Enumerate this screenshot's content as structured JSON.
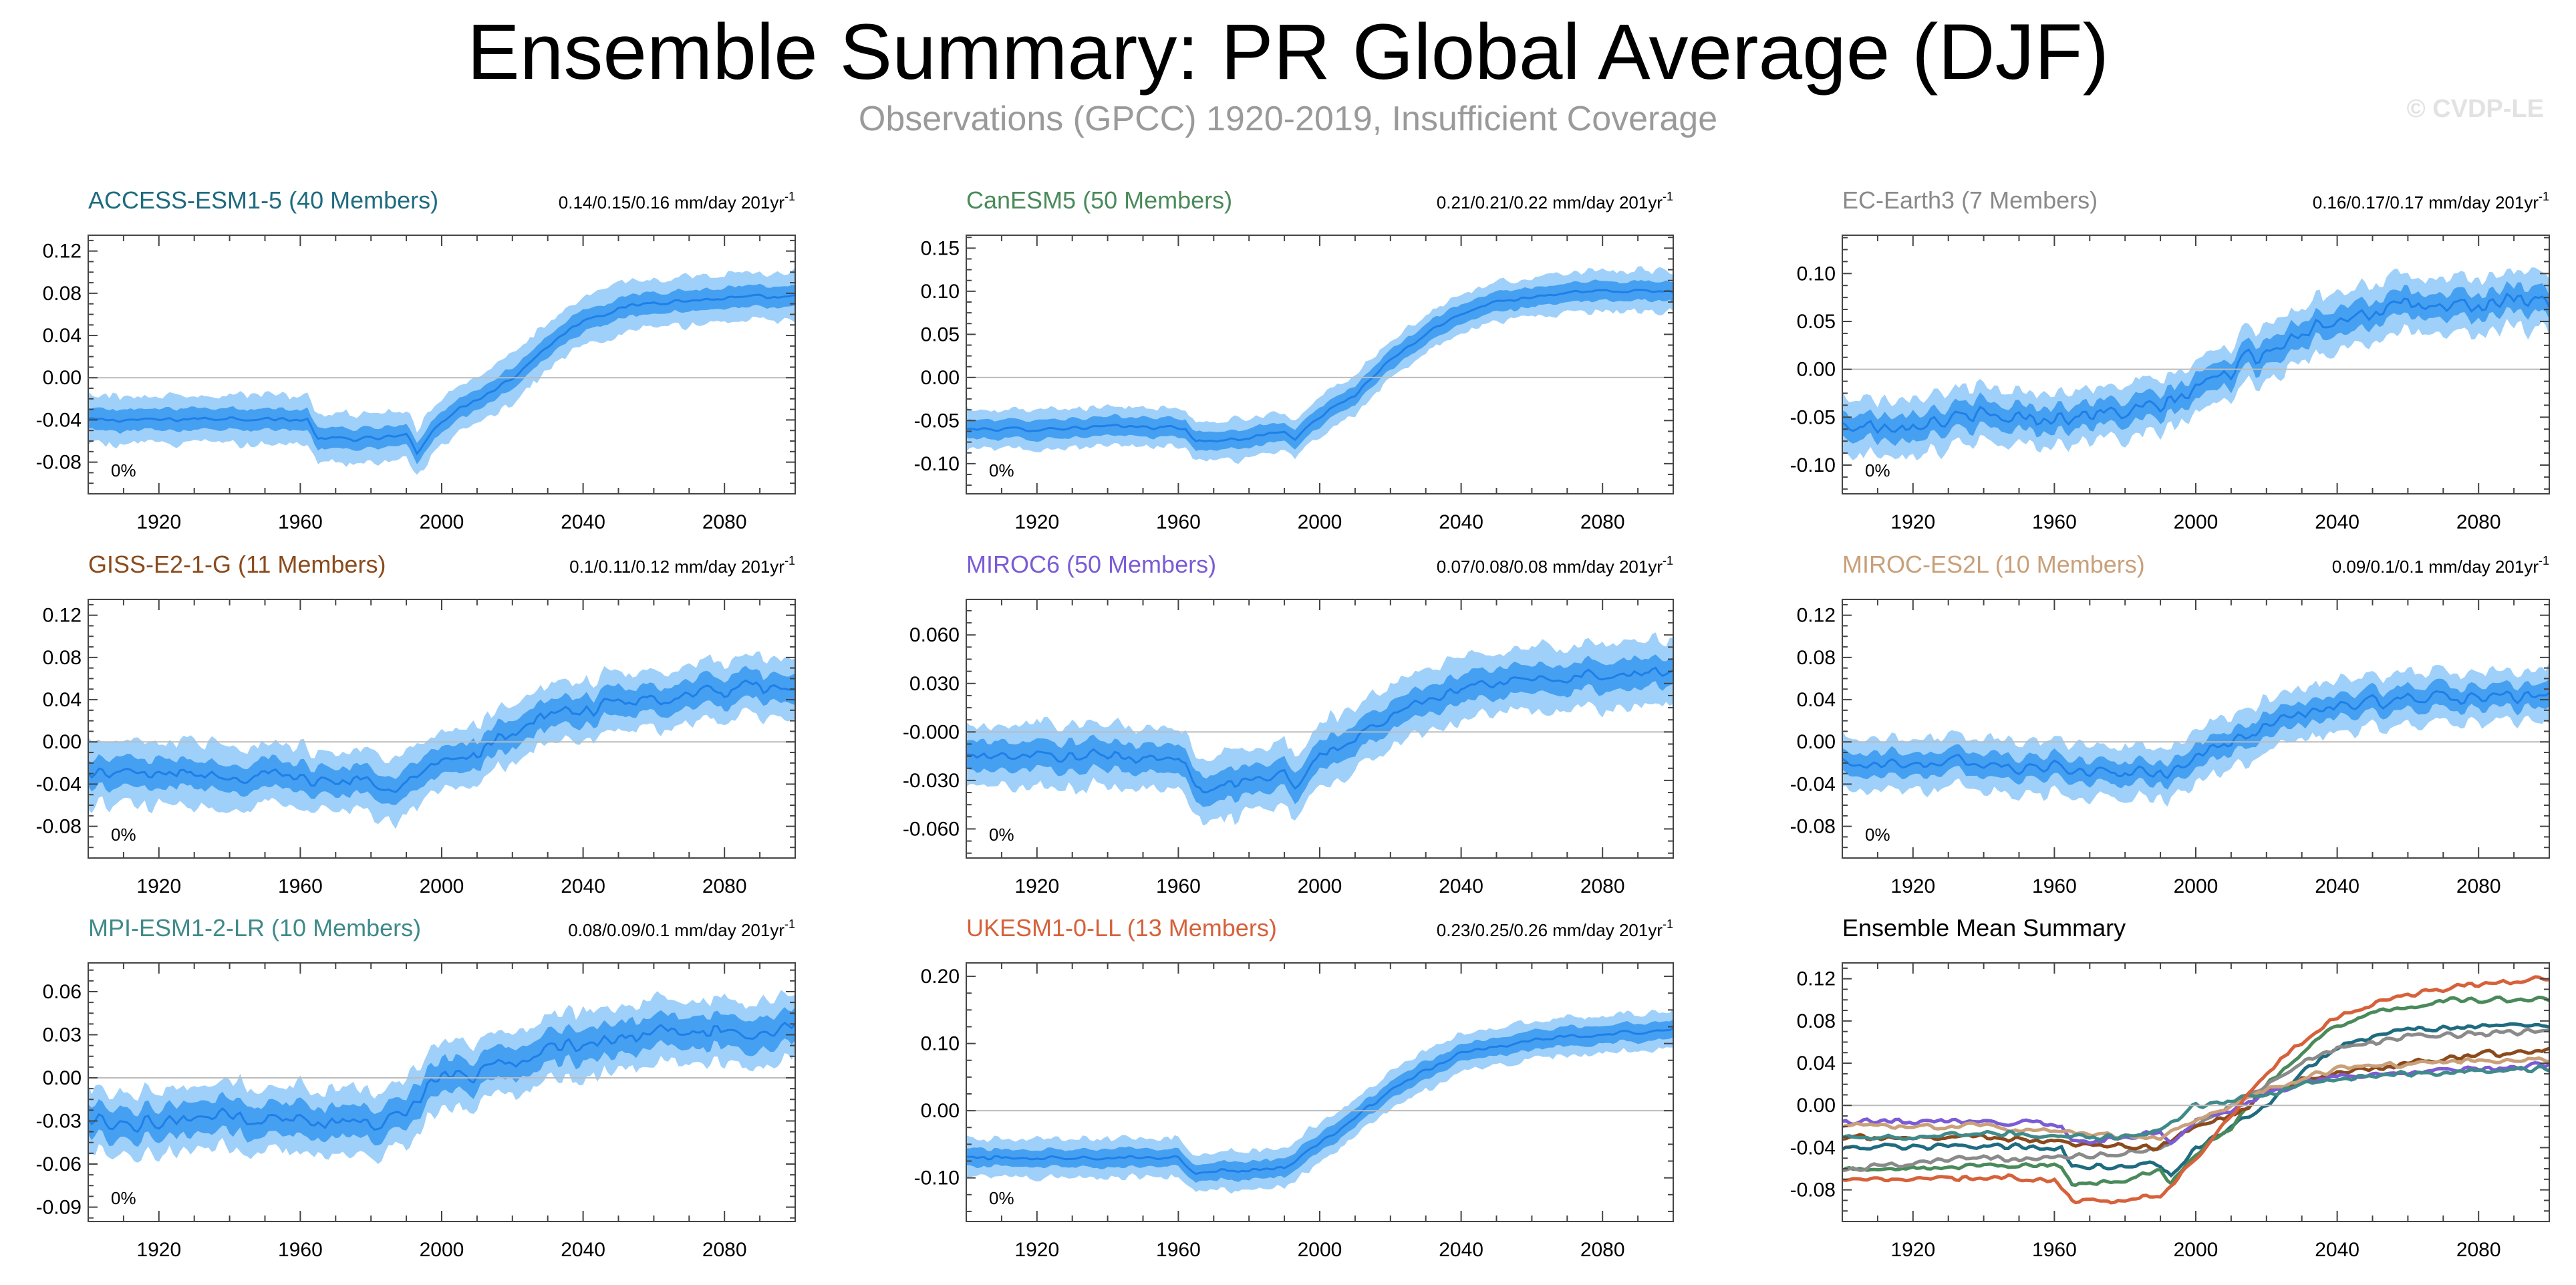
{
  "page": {
    "title": "Ensemble Summary: PR Global Average (DJF)",
    "subtitle": "Observations (GPCC) 1920-2019, Insufficient Coverage",
    "copyright": "© CVDP-LE"
  },
  "chart_data": [
    {
      "type": "area",
      "title": "ACCESS-ESM1-5 (40 Members)",
      "title_color": "#1f6b80",
      "trend_label": "0.14/0.15/0.16 mm/day 201yr",
      "trend_superscript": "-1",
      "corner_label": "0%",
      "xlim": [
        1900,
        2100
      ],
      "ylim": [
        -0.11,
        0.135
      ],
      "xticks": [
        1920,
        1960,
        2000,
        2040,
        2080
      ],
      "yticks": [
        0.12,
        0.08,
        0.04,
        0.0,
        -0.04,
        -0.08
      ],
      "ytick_labels": [
        "0.12",
        "0.08",
        "0.04",
        "0.00",
        "-0.04",
        "-0.08"
      ],
      "mean_x": [
        1900,
        1920,
        1940,
        1960,
        1962,
        1965,
        1980,
        1990,
        1993,
        2000,
        2010,
        2020,
        2030,
        2040,
        2050,
        2060,
        2070,
        2080,
        2090,
        2100
      ],
      "mean_y": [
        -0.04,
        -0.04,
        -0.038,
        -0.04,
        -0.04,
        -0.058,
        -0.058,
        -0.055,
        -0.07,
        -0.04,
        -0.02,
        0.0,
        0.03,
        0.055,
        0.065,
        0.072,
        0.073,
        0.075,
        0.076,
        0.076
      ],
      "band_inner": 0.009,
      "band_outer": 0.02,
      "noise": 0.003
    },
    {
      "type": "area",
      "title": "CanESM5 (50 Members)",
      "title_color": "#4a8a5a",
      "trend_label": "0.21/0.21/0.22 mm/day 201yr",
      "trend_superscript": "-1",
      "corner_label": "0%",
      "xlim": [
        1900,
        2100
      ],
      "ylim": [
        -0.135,
        0.165
      ],
      "xticks": [
        1920,
        1960,
        2000,
        2040,
        2080
      ],
      "yticks": [
        0.15,
        0.1,
        0.05,
        0.0,
        -0.05,
        -0.1
      ],
      "ytick_labels": [
        "0.15",
        "0.10",
        "0.05",
        "0.00",
        "-0.05",
        "-0.10"
      ],
      "mean_x": [
        1900,
        1920,
        1940,
        1960,
        1962,
        1965,
        1980,
        1990,
        1993,
        2000,
        2010,
        2020,
        2030,
        2040,
        2050,
        2060,
        2070,
        2080,
        2090,
        2100
      ],
      "mean_y": [
        -0.06,
        -0.06,
        -0.057,
        -0.058,
        -0.06,
        -0.075,
        -0.07,
        -0.062,
        -0.072,
        -0.045,
        -0.02,
        0.02,
        0.05,
        0.075,
        0.088,
        0.094,
        0.098,
        0.1,
        0.1,
        0.1
      ],
      "band_inner": 0.01,
      "band_outer": 0.02,
      "noise": 0.003
    },
    {
      "type": "area",
      "title": "EC-Earth3 (7 Members)",
      "title_color": "#8a8a8a",
      "trend_label": "0.16/0.17/0.17 mm/day 201yr",
      "trend_superscript": "-1",
      "corner_label": "0%",
      "xlim": [
        1900,
        2100
      ],
      "ylim": [
        -0.13,
        0.14
      ],
      "xticks": [
        1920,
        1960,
        2000,
        2040,
        2080
      ],
      "yticks": [
        0.1,
        0.05,
        0.0,
        -0.05,
        -0.1
      ],
      "ytick_labels": [
        "0.10",
        "0.05",
        "0.00",
        "-0.05",
        "-0.10"
      ],
      "mean_x": [
        1900,
        1920,
        1940,
        1960,
        1980,
        1990,
        2000,
        2010,
        2020,
        2030,
        2040,
        2060,
        2080,
        2100
      ],
      "mean_y": [
        -0.06,
        -0.055,
        -0.05,
        -0.05,
        -0.045,
        -0.04,
        -0.02,
        0.0,
        0.02,
        0.04,
        0.055,
        0.065,
        0.068,
        0.07
      ],
      "band_inner": 0.012,
      "band_outer": 0.025,
      "noise": 0.013
    },
    {
      "type": "area",
      "title": "GISS-E2-1-G (11 Members)",
      "title_color": "#8b4a1c",
      "trend_label": "0.1/0.11/0.12 mm/day 201yr",
      "trend_superscript": "-1",
      "corner_label": "0%",
      "xlim": [
        1900,
        2100
      ],
      "ylim": [
        -0.11,
        0.135
      ],
      "xticks": [
        1920,
        1960,
        2000,
        2040,
        2080
      ],
      "yticks": [
        0.12,
        0.08,
        0.04,
        0.0,
        -0.04,
        -0.08
      ],
      "ytick_labels": [
        "0.12",
        "0.08",
        "0.04",
        "0.00",
        "-0.04",
        "-0.08"
      ],
      "mean_x": [
        1900,
        1920,
        1940,
        1960,
        1980,
        1990,
        1992,
        2000,
        2010,
        2020,
        2030,
        2040,
        2060,
        2080,
        2100
      ],
      "mean_y": [
        -0.03,
        -0.03,
        -0.03,
        -0.035,
        -0.038,
        -0.04,
        -0.035,
        -0.02,
        -0.01,
        0.01,
        0.025,
        0.03,
        0.04,
        0.048,
        0.052
      ],
      "band_inner": 0.012,
      "band_outer": 0.025,
      "noise": 0.01
    },
    {
      "type": "area",
      "title": "MIROC6 (50 Members)",
      "title_color": "#7b5bd6",
      "trend_label": "0.07/0.08/0.08 mm/day 201yr",
      "trend_superscript": "-1",
      "corner_label": "0%",
      "xlim": [
        1900,
        2100
      ],
      "ylim": [
        -0.078,
        0.082
      ],
      "xticks": [
        1920,
        1960,
        2000,
        2040,
        2080
      ],
      "yticks": [
        0.06,
        0.03,
        0.0,
        -0.03,
        -0.06
      ],
      "ytick_labels": [
        "0.060",
        "0.030",
        "-0.000",
        "-0.030",
        "-0.060"
      ],
      "mean_x": [
        1900,
        1920,
        1940,
        1960,
        1962,
        1965,
        1980,
        1990,
        1993,
        2000,
        2010,
        2020,
        2030,
        2040,
        2060,
        2080,
        2100
      ],
      "mean_y": [
        -0.015,
        -0.015,
        -0.015,
        -0.017,
        -0.02,
        -0.035,
        -0.03,
        -0.025,
        -0.035,
        -0.015,
        -0.005,
        0.01,
        0.02,
        0.028,
        0.032,
        0.035,
        0.038
      ],
      "band_inner": 0.008,
      "band_outer": 0.017,
      "noise": 0.005
    },
    {
      "type": "area",
      "title": "MIROC-ES2L (10 Members)",
      "title_color": "#c9a07a",
      "trend_label": "0.09/0.1/0.1 mm/day 201yr",
      "trend_superscript": "-1",
      "corner_label": "0%",
      "xlim": [
        1900,
        2100
      ],
      "ylim": [
        -0.11,
        0.135
      ],
      "xticks": [
        1920,
        1960,
        2000,
        2040,
        2080
      ],
      "yticks": [
        0.12,
        0.08,
        0.04,
        0.0,
        -0.04,
        -0.08
      ],
      "ytick_labels": [
        "0.12",
        "0.08",
        "0.04",
        "0.00",
        "-0.04",
        "-0.08"
      ],
      "mean_x": [
        1900,
        1920,
        1940,
        1960,
        1980,
        1990,
        2000,
        2010,
        2020,
        2030,
        2040,
        2060,
        2080,
        2100
      ],
      "mean_y": [
        -0.02,
        -0.02,
        -0.02,
        -0.025,
        -0.03,
        -0.03,
        -0.015,
        0.0,
        0.015,
        0.025,
        0.035,
        0.04,
        0.042,
        0.045
      ],
      "band_inner": 0.01,
      "band_outer": 0.022,
      "noise": 0.009
    },
    {
      "type": "area",
      "title": "MPI-ESM1-2-LR (10 Members)",
      "title_color": "#3f8a8a",
      "trend_label": "0.08/0.09/0.1 mm/day 201yr",
      "trend_superscript": "-1",
      "corner_label": "0%",
      "xlim": [
        1900,
        2100
      ],
      "ylim": [
        -0.1,
        0.08
      ],
      "xticks": [
        1920,
        1960,
        2000,
        2040,
        2080
      ],
      "yticks": [
        0.06,
        0.03,
        0.0,
        -0.03,
        -0.06,
        -0.09
      ],
      "ytick_labels": [
        "0.06",
        "0.03",
        "0.00",
        "-0.03",
        "-0.06",
        "-0.09"
      ],
      "mean_x": [
        1900,
        1920,
        1940,
        1960,
        1980,
        1990,
        1992,
        2000,
        2010,
        2020,
        2030,
        2040,
        2060,
        2080,
        2100
      ],
      "mean_y": [
        -0.03,
        -0.03,
        -0.025,
        -0.03,
        -0.03,
        -0.025,
        -0.02,
        0.0,
        0.005,
        0.01,
        0.02,
        0.025,
        0.03,
        0.032,
        0.035
      ],
      "band_inner": 0.01,
      "band_outer": 0.02,
      "noise": 0.008
    },
    {
      "type": "area",
      "title": "UKESM1-0-LL (13 Members)",
      "title_color": "#d6613a",
      "trend_label": "0.23/0.25/0.26 mm/day 201yr",
      "trend_superscript": "-1",
      "corner_label": "0%",
      "xlim": [
        1900,
        2100
      ],
      "ylim": [
        -0.165,
        0.22
      ],
      "xticks": [
        1920,
        1960,
        2000,
        2040,
        2080
      ],
      "yticks": [
        0.2,
        0.1,
        0.0,
        -0.1
      ],
      "ytick_labels": [
        "0.20",
        "0.10",
        "0.00",
        "-0.10"
      ],
      "mean_x": [
        1900,
        1920,
        1940,
        1960,
        1962,
        1965,
        1980,
        1990,
        2000,
        2010,
        2020,
        2030,
        2040,
        2060,
        2080,
        2100
      ],
      "mean_y": [
        -0.07,
        -0.07,
        -0.068,
        -0.07,
        -0.08,
        -0.09,
        -0.09,
        -0.085,
        -0.05,
        -0.01,
        0.03,
        0.06,
        0.085,
        0.105,
        0.115,
        0.12
      ],
      "band_inner": 0.012,
      "band_outer": 0.025,
      "noise": 0.005
    },
    {
      "type": "line",
      "title": "Ensemble Mean Summary",
      "title_color": "#000000",
      "xlim": [
        1900,
        2100
      ],
      "ylim": [
        -0.11,
        0.135
      ],
      "xticks": [
        1920,
        1960,
        2000,
        2040,
        2080
      ],
      "yticks": [
        0.12,
        0.08,
        0.04,
        0.0,
        -0.04,
        -0.08
      ],
      "ytick_labels": [
        "0.12",
        "0.08",
        "0.04",
        "0.00",
        "-0.04",
        "-0.08"
      ],
      "series": [
        {
          "color": "#1f6b80",
          "x": [
            1900,
            1920,
            1940,
            1960,
            1962,
            1965,
            1980,
            1990,
            1993,
            2000,
            2010,
            2020,
            2030,
            2040,
            2050,
            2060,
            2070,
            2080,
            2090,
            2100
          ],
          "y": [
            -0.04,
            -0.04,
            -0.038,
            -0.04,
            -0.04,
            -0.058,
            -0.058,
            -0.055,
            -0.07,
            -0.04,
            -0.02,
            0.0,
            0.03,
            0.055,
            0.065,
            0.072,
            0.073,
            0.075,
            0.076,
            0.076
          ]
        },
        {
          "color": "#4a8a5a",
          "x": [
            1900,
            1920,
            1940,
            1960,
            1962,
            1965,
            1980,
            1990,
            1993,
            2000,
            2010,
            2020,
            2030,
            2040,
            2050,
            2060,
            2070,
            2080,
            2090,
            2100
          ],
          "y": [
            -0.06,
            -0.06,
            -0.057,
            -0.058,
            -0.06,
            -0.075,
            -0.07,
            -0.062,
            -0.072,
            -0.045,
            -0.02,
            0.02,
            0.05,
            0.075,
            0.088,
            0.094,
            0.098,
            0.1,
            0.1,
            0.1
          ]
        },
        {
          "color": "#8a8a8a",
          "x": [
            1900,
            1920,
            1940,
            1960,
            1980,
            1990,
            2000,
            2010,
            2020,
            2030,
            2040,
            2060,
            2080,
            2100
          ],
          "y": [
            -0.06,
            -0.055,
            -0.05,
            -0.05,
            -0.045,
            -0.04,
            -0.02,
            0.0,
            0.02,
            0.04,
            0.055,
            0.065,
            0.068,
            0.07
          ]
        },
        {
          "color": "#8b4a1c",
          "x": [
            1900,
            1920,
            1940,
            1960,
            1980,
            1990,
            1992,
            2000,
            2010,
            2020,
            2030,
            2040,
            2060,
            2080,
            2100
          ],
          "y": [
            -0.03,
            -0.03,
            -0.03,
            -0.035,
            -0.038,
            -0.04,
            -0.035,
            -0.02,
            -0.01,
            0.01,
            0.025,
            0.03,
            0.04,
            0.048,
            0.052
          ]
        },
        {
          "color": "#7b5bd6",
          "x": [
            1900,
            1920,
            1940,
            1960,
            1962,
            1965,
            1980,
            1990,
            1993,
            2000,
            2010,
            2020,
            2030,
            2040,
            2060,
            2080,
            2100
          ],
          "y": [
            -0.015,
            -0.015,
            -0.015,
            -0.017,
            -0.02,
            -0.035,
            -0.03,
            -0.025,
            -0.035,
            -0.015,
            -0.005,
            0.01,
            0.02,
            0.028,
            0.032,
            0.035,
            0.038
          ]
        },
        {
          "color": "#c9a07a",
          "x": [
            1900,
            1920,
            1940,
            1960,
            1980,
            1990,
            2000,
            2010,
            2020,
            2030,
            2040,
            2060,
            2080,
            2100
          ],
          "y": [
            -0.02,
            -0.02,
            -0.02,
            -0.025,
            -0.03,
            -0.03,
            -0.015,
            0.0,
            0.015,
            0.025,
            0.035,
            0.04,
            0.042,
            0.045
          ]
        },
        {
          "color": "#3f8a8a",
          "x": [
            1900,
            1920,
            1940,
            1960,
            1980,
            1990,
            1992,
            2000,
            2010,
            2020,
            2030,
            2040,
            2060,
            2080,
            2100
          ],
          "y": [
            -0.03,
            -0.03,
            -0.025,
            -0.03,
            -0.03,
            -0.025,
            -0.02,
            0.0,
            0.005,
            0.01,
            0.02,
            0.025,
            0.03,
            0.032,
            0.035
          ]
        },
        {
          "color": "#d6613a",
          "x": [
            1900,
            1920,
            1940,
            1960,
            1962,
            1965,
            1980,
            1990,
            2000,
            2010,
            2020,
            2030,
            2040,
            2060,
            2080,
            2100
          ],
          "y": [
            -0.07,
            -0.07,
            -0.068,
            -0.07,
            -0.08,
            -0.09,
            -0.09,
            -0.085,
            -0.05,
            -0.01,
            0.03,
            0.06,
            0.085,
            0.105,
            0.115,
            0.12
          ]
        }
      ]
    }
  ],
  "colors": {
    "outer_band": "#9fd0fa",
    "inner_band": "#3b9af0",
    "mean_line": "#1f7fe8",
    "zero_line": "#bbbbbb",
    "axis": "#555555"
  }
}
